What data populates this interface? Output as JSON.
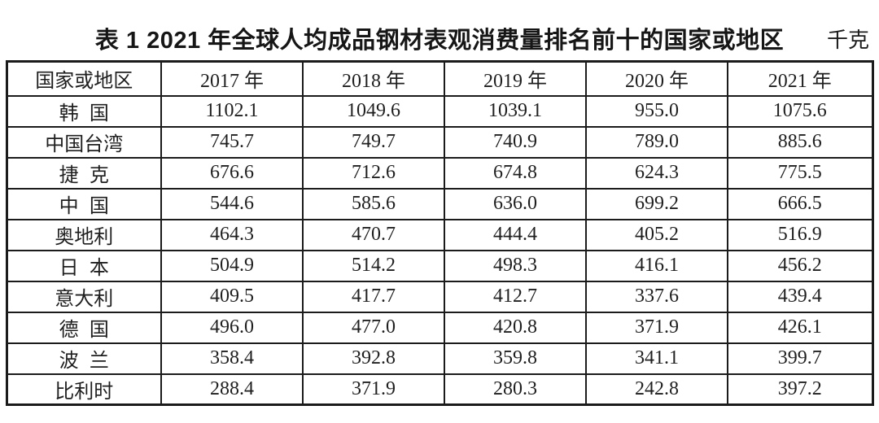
{
  "title": {
    "label": "表 1 2021 年全球人均成品钢材表观消费量排名前十的国家或地区",
    "unit": "千克"
  },
  "chart_data": {
    "type": "table",
    "title": "表 1 2021 年全球人均成品钢材表观消费量排名前十的国家或地区",
    "unit": "千克",
    "columns": [
      "国家或地区",
      "2017 年",
      "2018 年",
      "2019 年",
      "2020 年",
      "2021 年"
    ],
    "rows": [
      {
        "region": "韩国",
        "values": [
          "1102.1",
          "1049.6",
          "1039.1",
          "955.0",
          "1075.6"
        ]
      },
      {
        "region": "中国台湾",
        "values": [
          "745.7",
          "749.7",
          "740.9",
          "789.0",
          "885.6"
        ]
      },
      {
        "region": "捷克",
        "values": [
          "676.6",
          "712.6",
          "674.8",
          "624.3",
          "775.5"
        ]
      },
      {
        "region": "中国",
        "values": [
          "544.6",
          "585.6",
          "636.0",
          "699.2",
          "666.5"
        ]
      },
      {
        "region": "奥地利",
        "values": [
          "464.3",
          "470.7",
          "444.4",
          "405.2",
          "516.9"
        ]
      },
      {
        "region": "日本",
        "values": [
          "504.9",
          "514.2",
          "498.3",
          "416.1",
          "456.2"
        ]
      },
      {
        "region": "意大利",
        "values": [
          "409.5",
          "417.7",
          "412.7",
          "337.6",
          "439.4"
        ]
      },
      {
        "region": "德国",
        "values": [
          "496.0",
          "477.0",
          "420.8",
          "371.9",
          "426.1"
        ]
      },
      {
        "region": "波兰",
        "values": [
          "358.4",
          "392.8",
          "359.8",
          "341.1",
          "399.7"
        ]
      },
      {
        "region": "比利时",
        "values": [
          "288.4",
          "371.9",
          "280.3",
          "242.8",
          "397.2"
        ]
      }
    ],
    "colors": {
      "text": "#1c1c1c",
      "border": "#1b1b1b",
      "background": "#ffffff"
    }
  }
}
